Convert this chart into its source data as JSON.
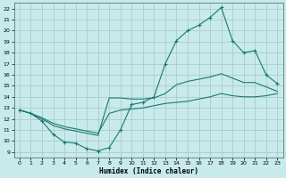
{
  "xlabel": "Humidex (Indice chaleur)",
  "bg_color": "#c8eaea",
  "grid_color": "#aacccc",
  "line_color": "#1a7a6e",
  "xlim": [
    -0.5,
    23.5
  ],
  "ylim": [
    8.5,
    22.5
  ],
  "xticks": [
    0,
    1,
    2,
    3,
    4,
    5,
    6,
    7,
    8,
    9,
    10,
    11,
    12,
    13,
    14,
    15,
    16,
    17,
    18,
    19,
    20,
    21,
    22,
    23
  ],
  "yticks": [
    9,
    10,
    11,
    12,
    13,
    14,
    15,
    16,
    17,
    18,
    19,
    20,
    21,
    22
  ],
  "line1_x": [
    0,
    1,
    2,
    3,
    4,
    5,
    6,
    7,
    8,
    9,
    10,
    11,
    12,
    13,
    14,
    15,
    16,
    17,
    18,
    19,
    20,
    21,
    22,
    23
  ],
  "line1_y": [
    12.8,
    12.5,
    11.8,
    10.6,
    9.9,
    9.8,
    9.3,
    9.1,
    9.4,
    11.0,
    13.3,
    13.5,
    14.0,
    17.0,
    19.1,
    20.0,
    20.5,
    21.2,
    22.1,
    19.1,
    18.0,
    18.2,
    16.0,
    15.2
  ],
  "line2_x": [
    0,
    1,
    2,
    3,
    4,
    5,
    6,
    7,
    8,
    9,
    10,
    11,
    12,
    13,
    14,
    15,
    16,
    17,
    18,
    19,
    20,
    21,
    22,
    23
  ],
  "line2_y": [
    12.8,
    12.5,
    12.0,
    11.4,
    11.1,
    10.9,
    10.7,
    10.5,
    13.9,
    13.9,
    13.8,
    13.8,
    13.9,
    14.3,
    15.1,
    15.4,
    15.6,
    15.8,
    16.1,
    15.7,
    15.3,
    15.3,
    14.9,
    14.5
  ],
  "line3_x": [
    0,
    1,
    2,
    3,
    4,
    5,
    6,
    7,
    8,
    9,
    10,
    11,
    12,
    13,
    14,
    15,
    16,
    17,
    18,
    19,
    20,
    21,
    22,
    23
  ],
  "line3_y": [
    12.8,
    12.5,
    12.1,
    11.6,
    11.3,
    11.1,
    10.9,
    10.7,
    12.5,
    12.8,
    12.9,
    13.0,
    13.2,
    13.4,
    13.5,
    13.6,
    13.8,
    14.0,
    14.3,
    14.1,
    14.0,
    14.0,
    14.1,
    14.3
  ]
}
